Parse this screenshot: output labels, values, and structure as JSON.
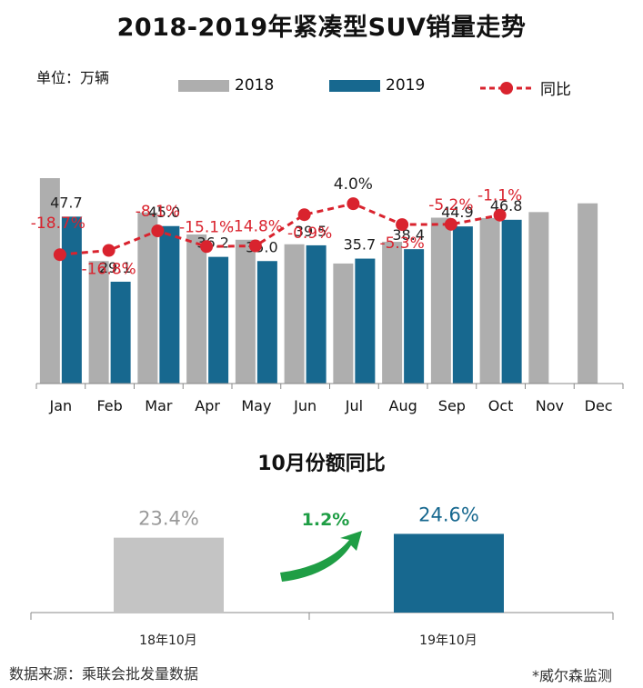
{
  "title": "2018-2019年紧凑型SUV销量走势",
  "unit_label": "单位：万辆",
  "legend": {
    "s2018": "2018",
    "s2019": "2019",
    "yoy": "同比"
  },
  "colors": {
    "gray": "#aeaeae",
    "blue": "#17688f",
    "red": "#d9232e",
    "green": "#1f9e45"
  },
  "chart_data": [
    {
      "type": "bar",
      "title": "2018-2019年紧凑型SUV销量走势",
      "ylabel": "单位：万辆",
      "ylim": [
        0,
        60
      ],
      "categories": [
        "Jan",
        "Feb",
        "Mar",
        "Apr",
        "May",
        "Jun",
        "Jul",
        "Aug",
        "Sep",
        "Oct",
        "Nov",
        "Dec"
      ],
      "series": [
        {
          "name": "2018",
          "values": [
            58.7,
            35.0,
            48.9,
            42.6,
            41.1,
            39.8,
            34.3,
            40.5,
            47.4,
            47.3,
            49.0,
            51.5
          ]
        },
        {
          "name": "2019",
          "values": [
            47.7,
            29.1,
            45.0,
            36.2,
            35.0,
            39.5,
            35.7,
            38.4,
            44.9,
            46.8,
            null,
            null
          ]
        }
      ],
      "value_labels_2019": [
        "47.7",
        "29.1",
        "45.0",
        "36.2",
        "35.0",
        "39.5",
        "35.7",
        "38.4",
        "44.9",
        "46.8"
      ],
      "yoy": {
        "name": "同比",
        "values": [
          -18.7,
          -16.8,
          -8.1,
          -15.1,
          -14.8,
          -0.9,
          4.0,
          -5.3,
          -5.2,
          -1.1
        ],
        "labels": [
          "-18.7%",
          "-16.8%",
          "-8.1%",
          "-15.1%",
          "-14.8%",
          "-0.9%",
          "4.0%",
          "-5.3%",
          "-5.2%",
          "-1.1%"
        ]
      }
    },
    {
      "type": "bar",
      "title": "10月份额同比",
      "categories": [
        "18年10月",
        "19年10月"
      ],
      "values": [
        23.4,
        24.6
      ],
      "value_labels": [
        "23.4%",
        "24.6%"
      ],
      "change_label": "1.2%"
    }
  ],
  "footer": {
    "source": "数据来源：乘联会批发量数据",
    "monitor": "*威尔森监测"
  }
}
